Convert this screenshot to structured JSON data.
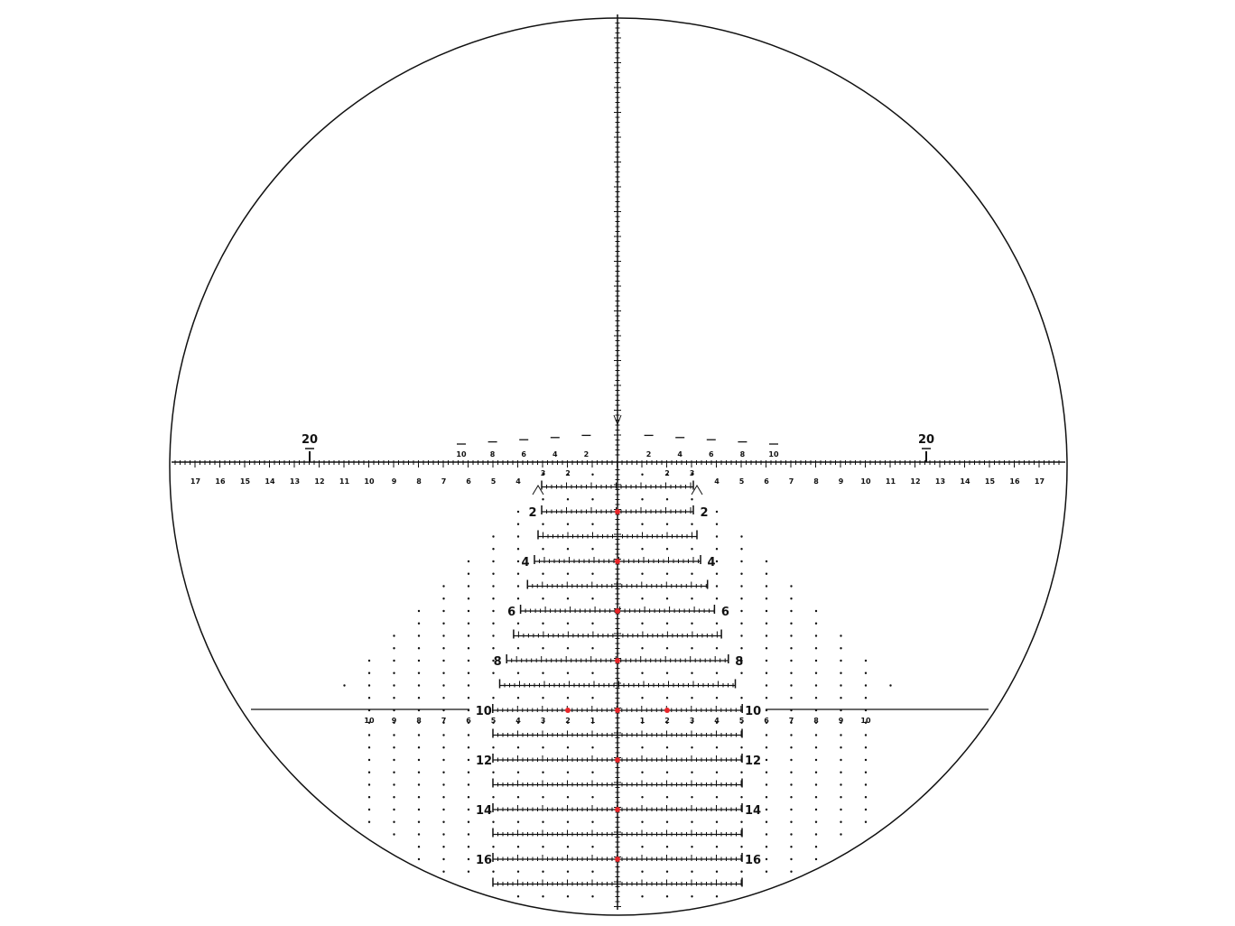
{
  "reticle": {
    "colors": {
      "line": "#111111",
      "aim_dot": "#e8262a",
      "background": "#ffffff"
    },
    "top_marker_labels": {
      "left": "20",
      "right": "20"
    },
    "upper_scale_labels": [
      "10",
      "8",
      "6",
      "4",
      "2",
      "2",
      "4",
      "6",
      "8",
      "10"
    ],
    "main_scale_labels_left": [
      "17",
      "16",
      "15",
      "14",
      "13",
      "12",
      "11",
      "10",
      "9",
      "8",
      "7",
      "6",
      "5",
      "4"
    ],
    "main_scale_labels_right": [
      "4",
      "5",
      "6",
      "7",
      "8",
      "9",
      "10",
      "11",
      "12",
      "13",
      "14",
      "15",
      "16",
      "17"
    ],
    "inner_scale_labels": [
      "3",
      "2",
      "2",
      "3"
    ],
    "elevation_labels": [
      "2",
      "4",
      "6",
      "8",
      "10",
      "12",
      "14",
      "16"
    ],
    "lower_scale_labels_left": [
      "10",
      "9",
      "8",
      "7",
      "6"
    ],
    "lower_scale_labels_right": [
      "6",
      "7",
      "8",
      "9",
      "10"
    ],
    "lower_inner_labels": [
      "5",
      "4",
      "3",
      "2",
      "1",
      "1",
      "2",
      "3",
      "4",
      "5"
    ]
  }
}
